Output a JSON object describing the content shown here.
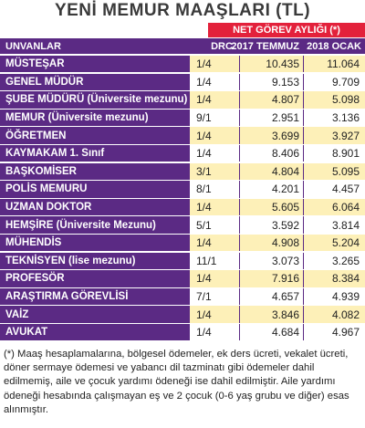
{
  "header": {
    "title": "YENİ MEMUR MAAŞLARI (TL)",
    "subtitle": "NET GÖREV AYLIĞI (*)"
  },
  "table": {
    "columns": [
      "UNVANLAR",
      "DRC.",
      "2017 TEMMUZ",
      "2018 OCAK"
    ],
    "rows": [
      [
        "MÜSTEŞAR",
        "1/4",
        "10.435",
        "11.064"
      ],
      [
        "GENEL MÜDÜR",
        "1/4",
        "9.153",
        "9.709"
      ],
      [
        "ŞUBE MÜDÜRÜ (Üniversite mezunu)",
        "1/4",
        "4.807",
        "5.098"
      ],
      [
        "MEMUR (Üniversite mezunu)",
        "9/1",
        "2.951",
        "3.136"
      ],
      [
        "ÖĞRETMEN",
        "1/4",
        "3.699",
        "3.927"
      ],
      [
        "KAYMAKAM 1. Sınıf",
        "1/4",
        "8.406",
        "8.901"
      ],
      [
        "BAŞKOMİSER",
        "3/1",
        "4.804",
        "5.095"
      ],
      [
        "POLİS MEMURU",
        "8/1",
        "4.201",
        "4.457"
      ],
      [
        "UZMAN DOKTOR",
        "1/4",
        "5.605",
        "6.064"
      ],
      [
        "HEMŞİRE (Üniversite Mezunu)",
        "5/1",
        "3.592",
        "3.814"
      ],
      [
        "MÜHENDİS",
        "1/4",
        "4.908",
        "5.204"
      ],
      [
        "TEKNİSYEN (lise mezunu)",
        "11/1",
        "3.073",
        "3.265"
      ],
      [
        "PROFESÖR",
        "1/4",
        "7.916",
        "8.384"
      ],
      [
        "ARAŞTIRMA GÖREVLİSİ",
        "7/1",
        "4.657",
        "4.939"
      ],
      [
        "VAİZ",
        "1/4",
        "3.846",
        "4.082"
      ],
      [
        "AVUKAT",
        "1/4",
        "4.684",
        "4.967"
      ]
    ]
  },
  "footnote": "(*) Maaş hesaplamalarına, bölgesel ödemeler, ek ders ücreti, vekalet ücreti, döner sermaye ödemesi ve yabancı dil tazminatı gibi ödemeler dahil edilmemiş, aile ve çocuk yardımı ödeneği ise dahil edilmiştir. Aile yardımı ödeneği hesabında çalışmayan eş ve 2 çocuk (0-6 yaş grubu ve diğer) esas alınmıştır."
}
